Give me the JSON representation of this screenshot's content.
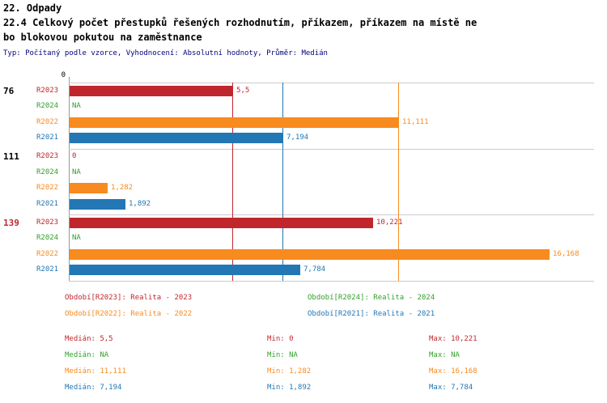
{
  "header": {
    "title": "22. Odpady",
    "subtitle_lines": [
      "22.4 Celkový počet přestupků řešených rozhodnutím, příkazem, příkazem na místě ne",
      "bo blokovou pokutou na zaměstnance"
    ],
    "meta": "Typ: Počítaný podle vzorce, Vyhodnocení: Absolutní hodnoty, Průměr: Medián"
  },
  "colors": {
    "axis_line": "#999999",
    "separator_line": "#cccccc",
    "meta_text": "#000080",
    "background": "#ffffff"
  },
  "chart_data": {
    "type": "bar",
    "orientation": "horizontal",
    "x_axis": {
      "min": 0,
      "max": 17.7,
      "origin_tick_label": "0"
    },
    "series_order": [
      "R2023",
      "R2024",
      "R2022",
      "R2021"
    ],
    "series_colors": {
      "R2023": "#c0272d",
      "R2024": "#33a02c",
      "R2022": "#f78b1f",
      "R2021": "#2277b4"
    },
    "groups": [
      {
        "label": "76",
        "label_color": "#000000",
        "values": {
          "R2023": 5.5,
          "R2024": null,
          "R2022": 11.111,
          "R2021": 7.194
        },
        "display": {
          "R2023": "5,5",
          "R2024": "NA",
          "R2022": "11,111",
          "R2021": "7,194"
        }
      },
      {
        "label": "111",
        "label_color": "#000000",
        "values": {
          "R2023": 0,
          "R2024": null,
          "R2022": 1.282,
          "R2021": 1.892
        },
        "display": {
          "R2023": "0",
          "R2024": "NA",
          "R2022": "1,282",
          "R2021": "1,892"
        }
      },
      {
        "label": "139",
        "label_color": "#c0272d",
        "values": {
          "R2023": 10.221,
          "R2024": null,
          "R2022": 16.168,
          "R2021": 7.784
        },
        "display": {
          "R2023": "10,221",
          "R2024": "NA",
          "R2022": "16,168",
          "R2021": "7,784"
        }
      }
    ],
    "median_lines": [
      {
        "series": "R2023",
        "value": 5.5
      },
      {
        "series": "R2022",
        "value": 11.111
      },
      {
        "series": "R2021",
        "value": 7.194
      }
    ]
  },
  "legend": [
    {
      "series": "R2023",
      "label": "Období[R2023]: Realita - 2023"
    },
    {
      "series": "R2024",
      "label": "Období[R2024]: Realita - 2024"
    },
    {
      "series": "R2022",
      "label": "Období[R2022]: Realita - 2022"
    },
    {
      "series": "R2021",
      "label": "Období[R2021]: Realita - 2021"
    }
  ],
  "stats": [
    {
      "series": "R2023",
      "median": "Medián: 5,5",
      "min": "Min: 0",
      "max": "Max: 10,221"
    },
    {
      "series": "R2024",
      "median": "Medián: NA",
      "min": "Min: NA",
      "max": "Max: NA"
    },
    {
      "series": "R2022",
      "median": "Medián: 11,111",
      "min": "Min: 1,282",
      "max": "Max: 16,168"
    },
    {
      "series": "R2021",
      "median": "Medián: 7,194",
      "min": "Min: 1,892",
      "max": "Max: 7,784"
    }
  ]
}
